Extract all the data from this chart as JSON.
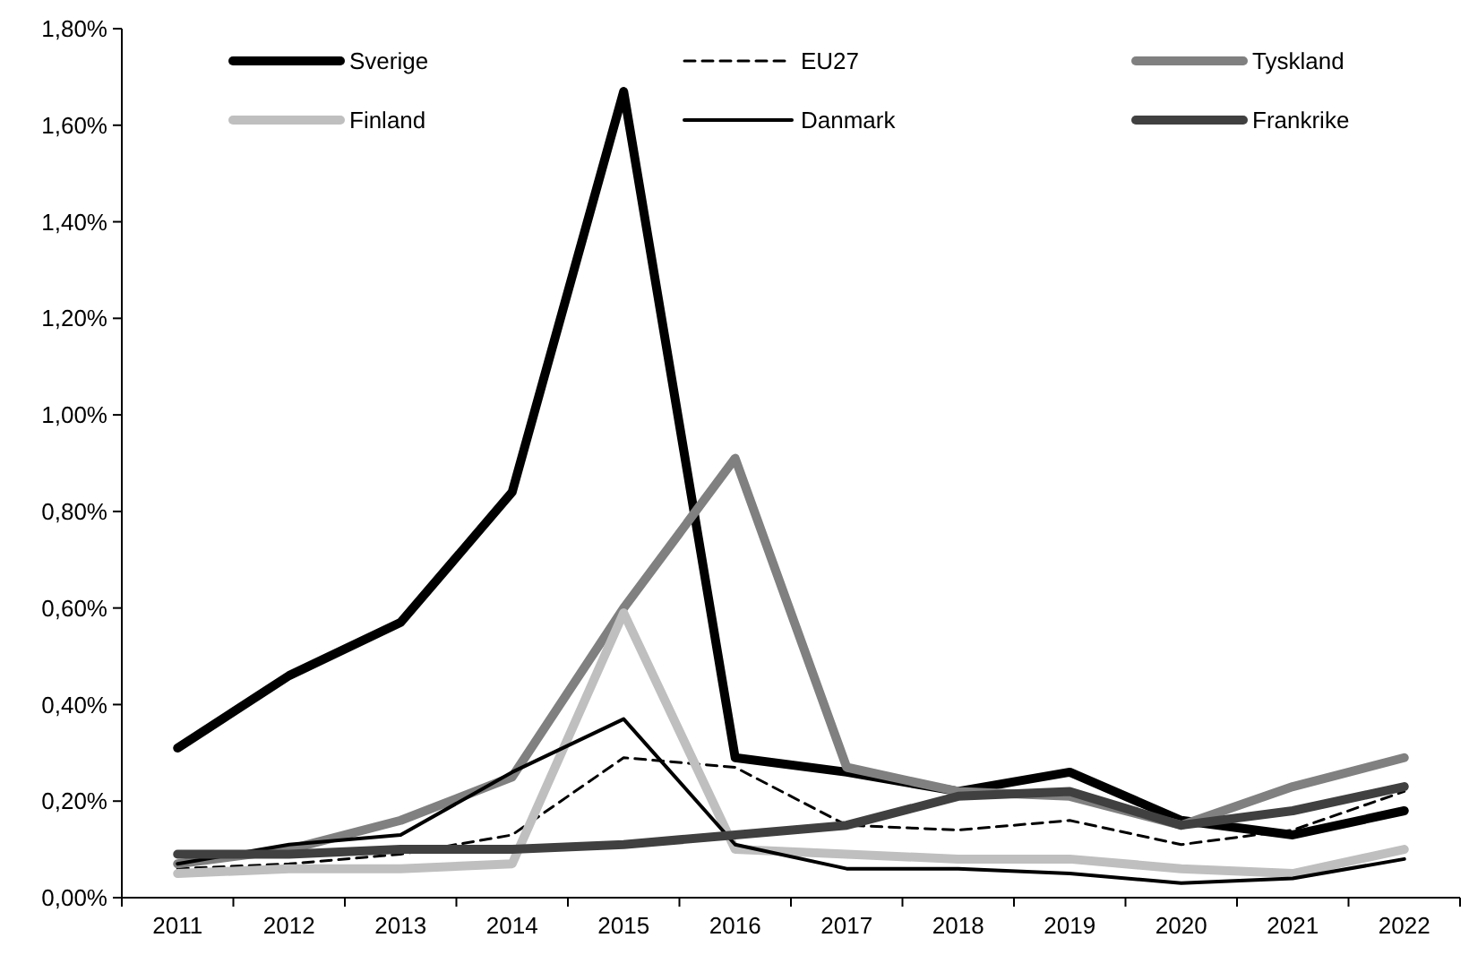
{
  "chart_data": {
    "type": "line",
    "categories": [
      "2011",
      "2012",
      "2013",
      "2014",
      "2015",
      "2016",
      "2017",
      "2018",
      "2019",
      "2020",
      "2021",
      "2022"
    ],
    "ylim": [
      0,
      1.8
    ],
    "yticks": [
      {
        "value": 0,
        "label": "0,00%"
      },
      {
        "value": 0.2,
        "label": "0,20%"
      },
      {
        "value": 0.4,
        "label": "0,40%"
      },
      {
        "value": 0.6,
        "label": "0,60%"
      },
      {
        "value": 0.8,
        "label": "0,80%"
      },
      {
        "value": 1.0,
        "label": "1,00%"
      },
      {
        "value": 1.2,
        "label": "1,20%"
      },
      {
        "value": 1.4,
        "label": "1,40%"
      },
      {
        "value": 1.6,
        "label": "1,60%"
      },
      {
        "value": 1.8,
        "label": "1,80%"
      }
    ],
    "grid": false,
    "legend": "top",
    "marker": "none",
    "series": [
      {
        "name": "Sverige",
        "color": "#000000",
        "values": [
          0.31,
          0.46,
          0.57,
          0.84,
          1.67,
          0.29,
          0.26,
          0.22,
          0.26,
          0.16,
          0.13,
          0.18
        ]
      },
      {
        "name": "EU27",
        "color": "#000000",
        "line_style": "dashed",
        "values": [
          0.06,
          0.07,
          0.09,
          0.13,
          0.29,
          0.27,
          0.15,
          0.14,
          0.16,
          0.11,
          0.14,
          0.22
        ]
      },
      {
        "name": "Tyskland",
        "color": "#808080",
        "values": [
          0.07,
          0.1,
          0.16,
          0.25,
          0.6,
          0.91,
          0.27,
          0.22,
          0.21,
          0.15,
          0.23,
          0.29
        ]
      },
      {
        "name": "Finland",
        "color": "#bfbfbf",
        "values": [
          0.05,
          0.06,
          0.06,
          0.07,
          0.59,
          0.1,
          0.09,
          0.08,
          0.08,
          0.06,
          0.05,
          0.1
        ]
      },
      {
        "name": "Danmark",
        "color": "#000000",
        "values": [
          0.07,
          0.11,
          0.13,
          0.26,
          0.37,
          0.11,
          0.06,
          0.06,
          0.05,
          0.03,
          0.04,
          0.08
        ]
      },
      {
        "name": "Frankrike",
        "color": "#404040",
        "values": [
          0.09,
          0.09,
          0.1,
          0.1,
          0.11,
          0.13,
          0.15,
          0.21,
          0.22,
          0.15,
          0.18,
          0.23
        ]
      }
    ]
  }
}
